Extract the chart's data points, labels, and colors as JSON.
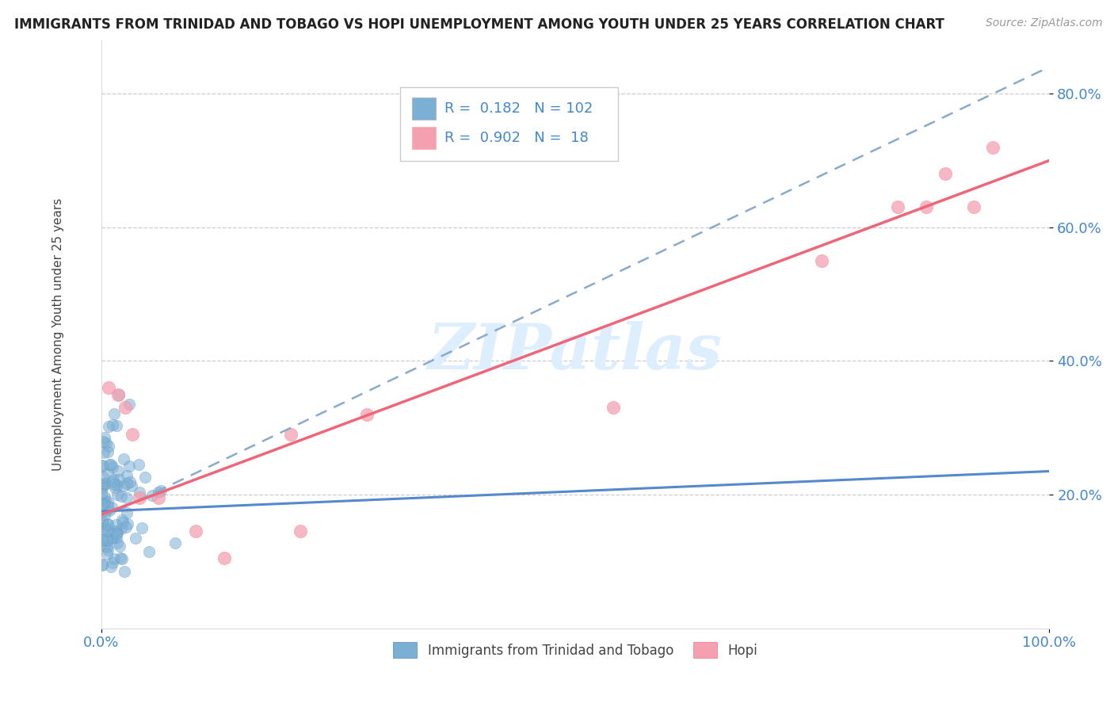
{
  "title": "IMMIGRANTS FROM TRINIDAD AND TOBAGO VS HOPI UNEMPLOYMENT AMONG YOUTH UNDER 25 YEARS CORRELATION CHART",
  "source": "Source: ZipAtlas.com",
  "ylabel": "Unemployment Among Youth under 25 years",
  "xlim": [
    0.0,
    1.0
  ],
  "ylim": [
    0.0,
    0.88
  ],
  "yticks": [
    0.2,
    0.4,
    0.6,
    0.8
  ],
  "yticklabels": [
    "20.0%",
    "40.0%",
    "60.0%",
    "80.0%"
  ],
  "xtick_left": 0.0,
  "xtick_right": 1.0,
  "xtick_left_label": "0.0%",
  "xtick_right_label": "100.0%",
  "watermark": "ZIPatlas",
  "legend_r_blue": "0.182",
  "legend_n_blue": "102",
  "legend_r_pink": "0.902",
  "legend_n_pink": "18",
  "blue_line_x0": 0.0,
  "blue_line_x1": 1.0,
  "blue_line_y0": 0.175,
  "blue_line_y1": 0.235,
  "pink_line_x0": 0.0,
  "pink_line_x1": 1.0,
  "pink_line_y0": 0.17,
  "pink_line_y1": 0.7,
  "dashed_line_x0": 0.0,
  "dashed_line_x1": 1.0,
  "dashed_line_y0": 0.165,
  "dashed_line_y1": 0.84,
  "blue_dot_color": "#7BAFD4",
  "blue_dot_edge": "#5588BB",
  "pink_dot_color": "#F4A0B0",
  "pink_dot_edge": "#EE7788",
  "blue_line_color": "#5588CC",
  "pink_line_color": "#EE6677",
  "dashed_line_color": "#88AACC",
  "tick_color": "#4488CC",
  "grid_color": "#CCCCCC",
  "watermark_color": "#DDEEFF",
  "background_color": "#FFFFFF",
  "legend_box_color": "#FFFFFF",
  "legend_box_edge": "#CCCCCC",
  "pink_pts_x": [
    0.008,
    0.018,
    0.025,
    0.033,
    0.04,
    0.06,
    0.1,
    0.13,
    0.2,
    0.21,
    0.28,
    0.54,
    0.76,
    0.84,
    0.87,
    0.89,
    0.92,
    0.94
  ],
  "pink_pts_y": [
    0.36,
    0.35,
    0.33,
    0.29,
    0.195,
    0.195,
    0.145,
    0.105,
    0.29,
    0.145,
    0.32,
    0.33,
    0.55,
    0.63,
    0.63,
    0.68,
    0.63,
    0.72
  ]
}
